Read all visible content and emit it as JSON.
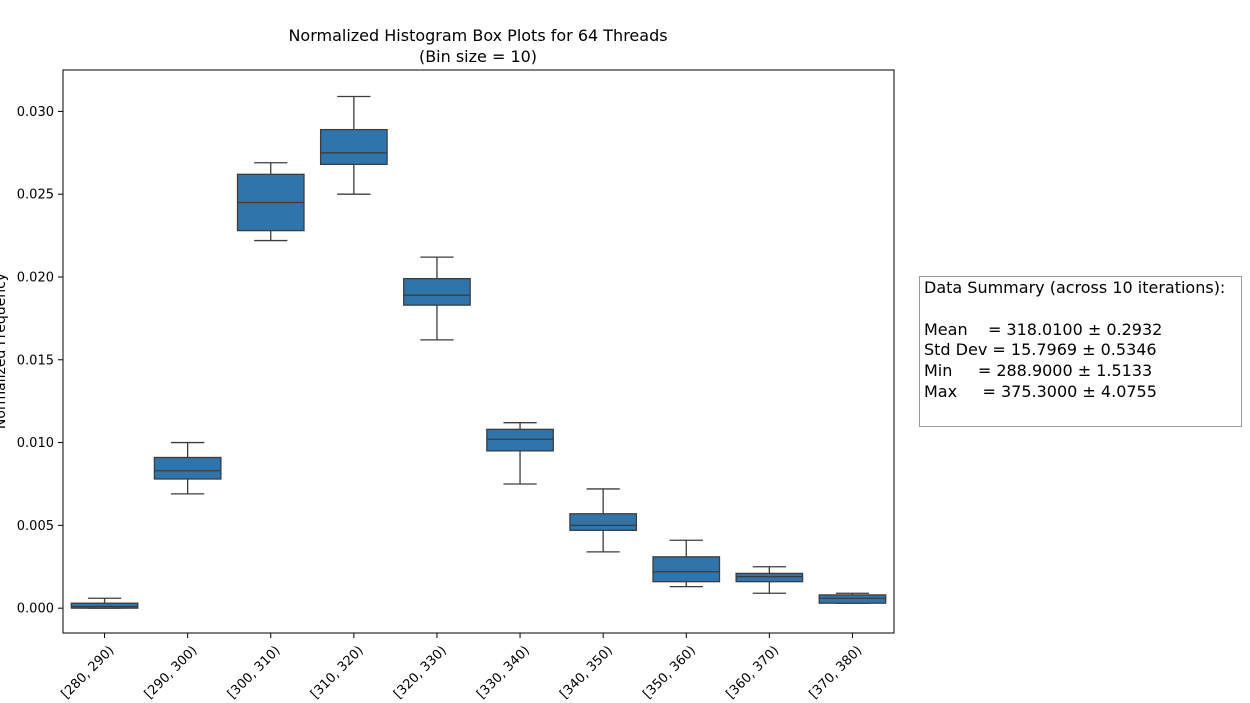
{
  "chart_data": {
    "type": "box",
    "title": "Normalized Histogram Box Plots for 64 Threads",
    "subtitle": "(Bin size = 10)",
    "xlabel": "",
    "ylabel": "Normalized Frequency",
    "ylim": [
      -0.0015,
      0.0325
    ],
    "yticks": [
      0.0,
      0.005,
      0.01,
      0.015,
      0.02,
      0.025,
      0.03
    ],
    "ytick_labels": [
      "0.000",
      "0.005",
      "0.010",
      "0.015",
      "0.020",
      "0.025",
      "0.030"
    ],
    "grid": false,
    "box_color": "#2f75ab",
    "line_color": "#3d3d3d",
    "categories": [
      "[280, 290)",
      "[290, 300)",
      "[300, 310)",
      "[310, 320)",
      "[320, 330)",
      "[330, 340)",
      "[340, 350)",
      "[350, 360)",
      "[360, 370)",
      "[370, 380)"
    ],
    "boxes": [
      {
        "whislo": 0.0,
        "q1": 0.0,
        "med": 0.0001,
        "q3": 0.0003,
        "whishi": 0.0006
      },
      {
        "whislo": 0.0069,
        "q1": 0.0078,
        "med": 0.0083,
        "q3": 0.0091,
        "whishi": 0.01
      },
      {
        "whislo": 0.0222,
        "q1": 0.0228,
        "med": 0.0245,
        "q3": 0.0262,
        "whishi": 0.0269
      },
      {
        "whislo": 0.025,
        "q1": 0.0268,
        "med": 0.0275,
        "q3": 0.0289,
        "whishi": 0.0309
      },
      {
        "whislo": 0.0162,
        "q1": 0.0183,
        "med": 0.0189,
        "q3": 0.0199,
        "whishi": 0.0212
      },
      {
        "whislo": 0.0075,
        "q1": 0.0095,
        "med": 0.0102,
        "q3": 0.0108,
        "whishi": 0.0112
      },
      {
        "whislo": 0.0034,
        "q1": 0.0047,
        "med": 0.005,
        "q3": 0.0057,
        "whishi": 0.0072
      },
      {
        "whislo": 0.0013,
        "q1": 0.0016,
        "med": 0.0022,
        "q3": 0.0031,
        "whishi": 0.0041
      },
      {
        "whislo": 0.0009,
        "q1": 0.0016,
        "med": 0.0019,
        "q3": 0.0021,
        "whishi": 0.0025
      },
      {
        "whislo": 0.0003,
        "q1": 0.0003,
        "med": 0.0006,
        "q3": 0.0008,
        "whishi": 0.0009
      }
    ]
  },
  "summary": {
    "heading": "Data Summary (across 10 iterations):",
    "lines": [
      "Mean    = 318.0100 ± 0.2932",
      "Std Dev = 15.7969 ± 0.5346",
      "Min     = 288.9000 ± 1.5133",
      "Max     = 375.3000 ± 4.0755"
    ]
  }
}
